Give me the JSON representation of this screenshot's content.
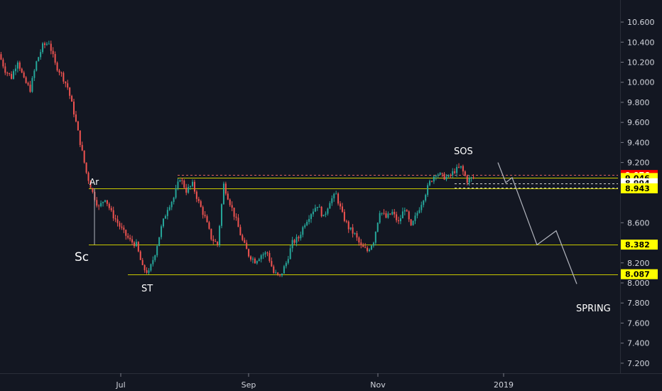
{
  "chart_data": {
    "type": "candlestick",
    "y_axis": {
      "range": [
        7.1,
        10.82
      ],
      "ticks": [
        "10.600",
        "10.400",
        "10.200",
        "10.000",
        "9.800",
        "9.600",
        "9.400",
        "9.200",
        "8.600",
        "8.400",
        "8.200",
        "8.000",
        "7.800",
        "7.600",
        "7.400",
        "7.200"
      ]
    },
    "x_axis": {
      "ticks": [
        "Jul",
        "Sep",
        "Nov",
        "2019"
      ]
    },
    "price_levels": [
      {
        "label": "9.076",
        "value": 9.076,
        "badge_color": "#ff0000",
        "text_color": "#ffffff",
        "line_color": "#e06060",
        "style": "dashed"
      },
      {
        "label": "9.046",
        "value": 9.046,
        "badge_color": "#ffff00",
        "text_color": "#000000",
        "line_color": "#c8c800",
        "style": "solid"
      },
      {
        "label": "8.994",
        "value": 8.994,
        "badge_color": "#ffffff",
        "text_color": "#000000",
        "line_color": "#d0d0d0",
        "style": "dashed"
      },
      {
        "label": "8.946",
        "value": 8.946,
        "badge_color": "#ffffff",
        "text_color": "#000000",
        "line_color": "#d0d0d0",
        "style": "dashed"
      },
      {
        "label": "8.943",
        "value": 8.943,
        "badge_color": "#ffff00",
        "text_color": "#000000",
        "line_color": "#c8c800",
        "style": "solid"
      },
      {
        "label": "8.382",
        "value": 8.382,
        "badge_color": "#ffff00",
        "text_color": "#000000",
        "line_color": "#c8c800",
        "style": "solid"
      },
      {
        "label": "8.087",
        "value": 8.087,
        "badge_color": "#ffff00",
        "text_color": "#000000",
        "line_color": "#c8c800",
        "style": "solid"
      }
    ],
    "annotations": [
      {
        "text": "Sc",
        "size": 17
      },
      {
        "text": "Ar",
        "size": 12
      },
      {
        "text": "ST",
        "size": 13
      },
      {
        "text": "SOS",
        "size": 13
      },
      {
        "text": "SPRING",
        "size": 13
      }
    ],
    "projection_path": [
      9.2,
      9.0,
      9.05,
      8.38,
      8.52,
      7.99
    ],
    "price_path": [
      10.28,
      10.12,
      10.05,
      10.22,
      10.02,
      9.93,
      10.2,
      10.36,
      10.4,
      10.18,
      10.08,
      9.95,
      9.7,
      9.4,
      9.1,
      8.9,
      8.75,
      8.85,
      8.7,
      8.6,
      8.5,
      8.42,
      8.38,
      8.15,
      8.1,
      8.3,
      8.55,
      8.75,
      8.85,
      9.05,
      8.92,
      8.98,
      8.8,
      8.65,
      8.45,
      8.38,
      8.98,
      8.8,
      8.62,
      8.42,
      8.28,
      8.22,
      8.28,
      8.3,
      8.1,
      8.06,
      8.2,
      8.4,
      8.45,
      8.6,
      8.7,
      8.78,
      8.65,
      8.82,
      8.88,
      8.68,
      8.55,
      8.48,
      8.36,
      8.32,
      8.42,
      8.72,
      8.65,
      8.7,
      8.6,
      8.75,
      8.55,
      8.7,
      8.85,
      9.0,
      9.1,
      9.06,
      9.05,
      9.12,
      9.15,
      9.02,
      9.05
    ],
    "colors": {
      "up": "#26a69a",
      "down": "#ef5350",
      "wick": "#787b86",
      "level_line": "#c8c800",
      "background": "#131722"
    }
  }
}
